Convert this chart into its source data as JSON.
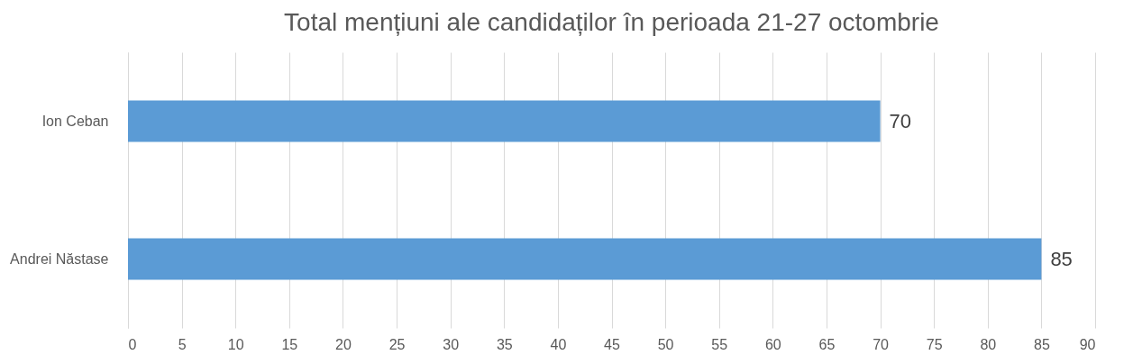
{
  "chart_data": {
    "type": "bar",
    "orientation": "horizontal",
    "title": "Total mențiuni ale candidaților în perioada 21-27 octombrie",
    "categories": [
      "Ion Ceban",
      "Andrei Năstase"
    ],
    "values": [
      70,
      85
    ],
    "color": "#5b9bd5",
    "xlim": [
      0,
      90
    ],
    "xticks": [
      0,
      5,
      10,
      15,
      20,
      25,
      30,
      35,
      40,
      45,
      50,
      55,
      60,
      65,
      70,
      75,
      80,
      85,
      90
    ],
    "grid": "x",
    "data_labels": true
  }
}
